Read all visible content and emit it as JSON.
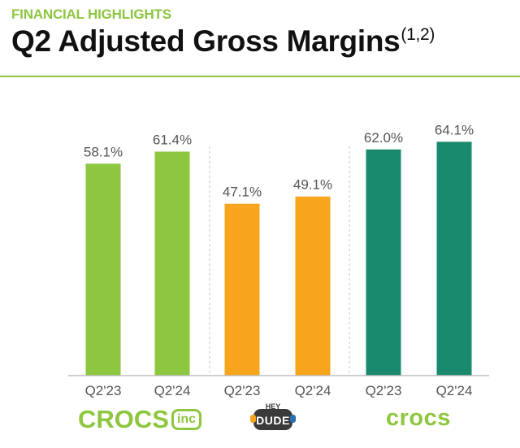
{
  "header": {
    "eyebrow": "FINANCIAL HIGHLIGHTS",
    "title": "Q2 Adjusted Gross Margins",
    "title_superscript": "(1,2)"
  },
  "brands": [
    {
      "name": "CROCS",
      "suffix": "inc",
      "logo_icon": "crocs-inc-logo"
    },
    {
      "name": "HEY DUDE",
      "logo_icon": "hey-dude-logo"
    },
    {
      "name": "crocs",
      "logo_icon": "crocs-logo"
    }
  ],
  "chart_data": {
    "type": "bar",
    "categories": [
      "Q2'23",
      "Q2'24",
      "Q2'23",
      "Q2'24",
      "Q2'23",
      "Q2'24"
    ],
    "groups": [
      "CROCS inc",
      "HEY DUDE",
      "crocs"
    ],
    "values": [
      58.1,
      61.4,
      47.1,
      49.1,
      62.0,
      64.1
    ],
    "data_labels": [
      "58.1%",
      "61.4%",
      "47.1%",
      "49.1%",
      "62.0%",
      "64.1%"
    ],
    "colors": [
      "#8dc63f",
      "#8dc63f",
      "#f7a51c",
      "#f7a51c",
      "#1a8a6e",
      "#1a8a6e"
    ],
    "ylim": [
      0,
      70
    ],
    "grid": false,
    "group_separators": "dashed"
  }
}
